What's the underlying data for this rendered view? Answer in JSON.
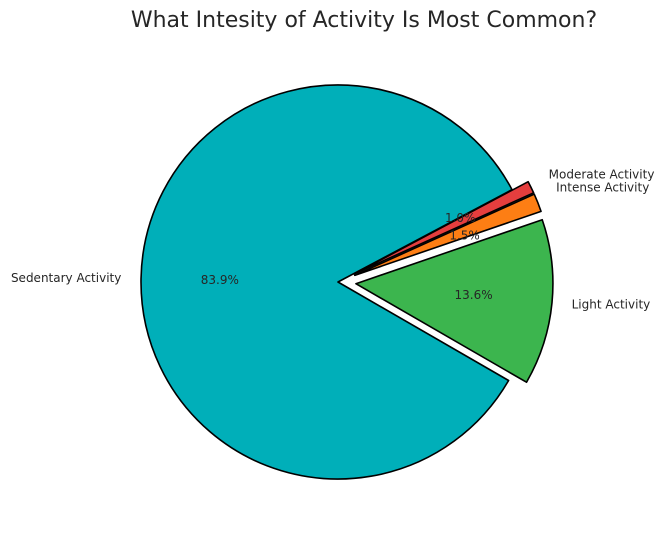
{
  "chart_data": {
    "type": "pie",
    "title": "What Intesity of Activity Is Most Common?",
    "categories": [
      "Light Activity",
      "Intense Activity",
      "Moderate Activity",
      "Sedentary Activity"
    ],
    "values": [
      13.6,
      1.5,
      1.0,
      83.9
    ],
    "value_labels": [
      "13.6%",
      "1.5%",
      "1.0%",
      "83.9%"
    ],
    "colors": [
      "#3cb54e",
      "#fd7e14",
      "#e53e3e",
      "#00afb9"
    ],
    "edge_color": "#000000",
    "exploded": [
      "Light Activity",
      "Intense Activity",
      "Moderate Activity"
    ]
  }
}
